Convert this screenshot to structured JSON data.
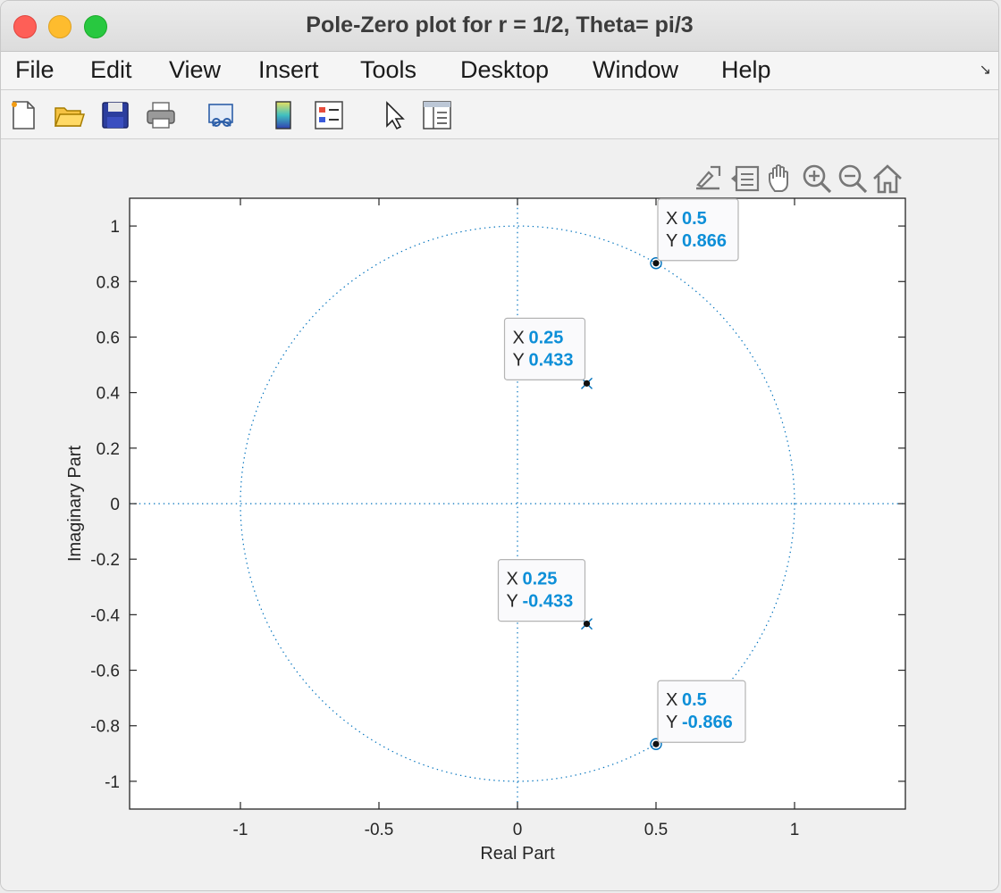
{
  "window": {
    "title": "Pole-Zero plot for r = 1/2, Theta= pi/3"
  },
  "menu": {
    "items": [
      "File",
      "Edit",
      "View",
      "Insert",
      "Tools",
      "Desktop",
      "Window",
      "Help"
    ]
  },
  "toolbar": {
    "icons": [
      "new-figure-icon",
      "open-file-icon",
      "save-icon",
      "print-icon",
      "link-plot-icon",
      "colorbar-icon",
      "legend-icon",
      "select-pointer-icon",
      "property-inspector-icon"
    ]
  },
  "axes_toolbar": {
    "icons": [
      "export-icon",
      "brush-icon",
      "pan-icon",
      "zoom-in-icon",
      "zoom-out-icon",
      "home-icon"
    ]
  },
  "chart_data": {
    "type": "scatter",
    "title": "",
    "xlabel": "Real Part",
    "ylabel": "Imaginary Part",
    "xlim": [
      -1.4,
      1.4
    ],
    "ylim": [
      -1.1,
      1.1
    ],
    "x_ticks": [
      -1,
      -0.5,
      0,
      0.5,
      1
    ],
    "x_tick_labels": [
      "-1",
      "-0.5",
      "0",
      "0.5",
      "1"
    ],
    "y_ticks": [
      1,
      0.8,
      0.6,
      0.4,
      0.2,
      0,
      -0.2,
      -0.4,
      -0.6,
      -0.8,
      -1
    ],
    "y_tick_labels": [
      "1",
      "0.8",
      "0.6",
      "0.4",
      "0.2",
      "0",
      "-0.2",
      "-0.4",
      "-0.6",
      "-0.8",
      "-1"
    ],
    "grid": false,
    "unit_circle": {
      "radius": 1,
      "style": "dotted",
      "color": "#0072bd"
    },
    "zeros": [
      {
        "x": 0.5,
        "y": 0.866
      },
      {
        "x": 0.5,
        "y": -0.866
      }
    ],
    "poles": [
      {
        "x": 0.25,
        "y": 0.433
      },
      {
        "x": 0.25,
        "y": -0.433
      }
    ],
    "datatips": [
      {
        "x_label": "X",
        "y_label": "Y",
        "x_value": "0.5",
        "y_value": "0.866"
      },
      {
        "x_label": "X",
        "y_label": "Y",
        "x_value": "0.25",
        "y_value": "0.433"
      },
      {
        "x_label": "X",
        "y_label": "Y",
        "x_value": "0.25",
        "y_value": "-0.433"
      },
      {
        "x_label": "X",
        "y_label": "Y",
        "x_value": "0.5",
        "y_value": "-0.866"
      }
    ]
  }
}
